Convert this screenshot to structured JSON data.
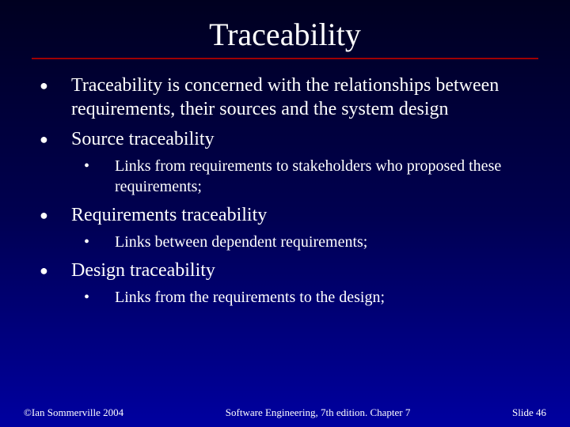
{
  "colors": {
    "background_top": "#000020",
    "background_mid": "#000050",
    "background_bottom": "#0000a0",
    "text": "#ffffff",
    "rule": "#a00000"
  },
  "typography": {
    "font_family": "Times New Roman",
    "title_fontsize": 40,
    "body_fontsize": 24,
    "sub_fontsize": 20,
    "footer_fontsize": 13
  },
  "title": "Traceability",
  "bullets": [
    {
      "text": "Traceability is concerned with the relationships between requirements, their sources and the system design",
      "sub": []
    },
    {
      "text": "Source traceability",
      "sub": [
        "Links from requirements to stakeholders who proposed these requirements;"
      ]
    },
    {
      "text": "Requirements traceability",
      "sub": [
        "Links between dependent requirements;"
      ]
    },
    {
      "text": "Design traceability",
      "sub": [
        "Links from the requirements to the design;"
      ]
    }
  ],
  "footer": {
    "left": "©Ian Sommerville 2004",
    "center": "Software Engineering, 7th edition. Chapter 7",
    "right": "Slide 46"
  }
}
